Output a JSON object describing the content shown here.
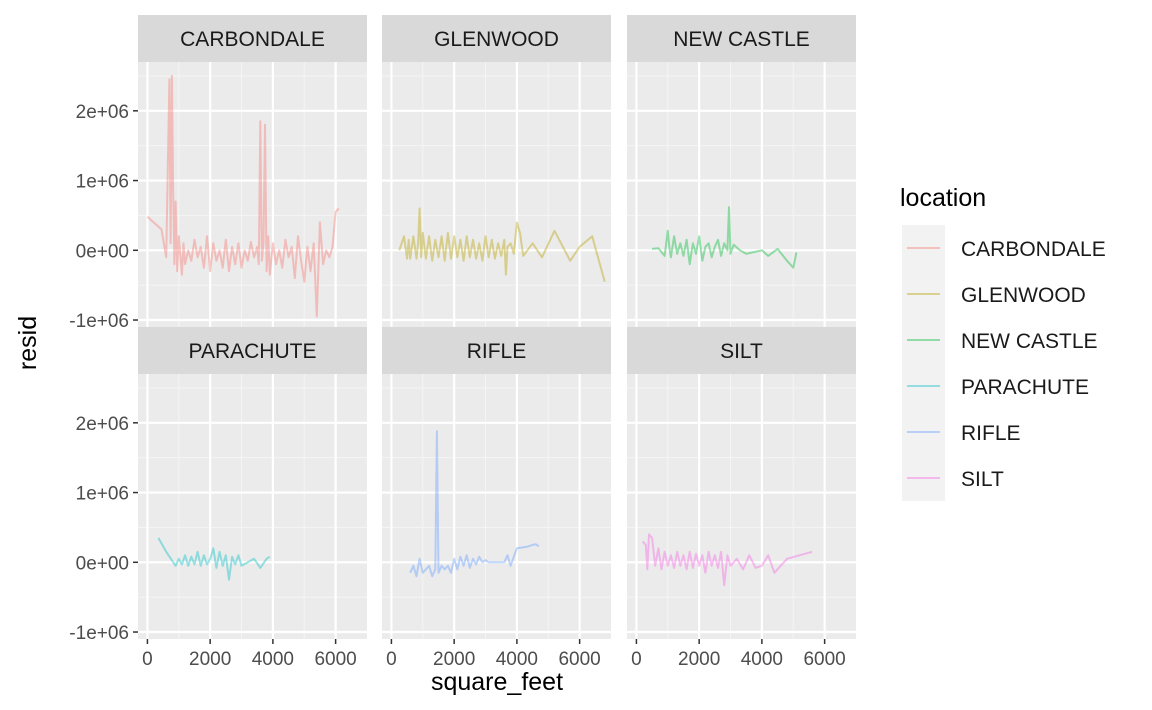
{
  "chart_data": {
    "type": "line",
    "xlabel": "square_feet",
    "ylabel": "resid",
    "xlim": [
      -300,
      7000
    ],
    "ylim": [
      -1100000,
      2700000
    ],
    "x_ticks": [
      0,
      2000,
      4000,
      6000
    ],
    "x_tick_labels": [
      "0",
      "2000",
      "4000",
      "6000"
    ],
    "y_ticks": [
      -1000000,
      0,
      1000000,
      2000000
    ],
    "y_tick_labels": [
      "-1e+06",
      "0e+00",
      "1e+06",
      "2e+06"
    ],
    "grid": true,
    "facet_layout": {
      "rows": 2,
      "cols": 3
    },
    "legend": {
      "title": "location",
      "position": "right",
      "entries": [
        "CARBONDALE",
        "GLENWOOD",
        "NEW CASTLE",
        "PARACHUTE",
        "RIFLE",
        "SILT"
      ]
    },
    "series": [
      {
        "name": "CARBONDALE",
        "color": "#F8766D",
        "x": [
          0,
          450,
          600,
          700,
          740,
          780,
          820,
          860,
          900,
          950,
          1000,
          1100,
          1150,
          1200,
          1300,
          1400,
          1500,
          1600,
          1700,
          1800,
          1900,
          2000,
          2100,
          2200,
          2300,
          2400,
          2500,
          2600,
          2700,
          2800,
          2900,
          3000,
          3100,
          3200,
          3300,
          3400,
          3500,
          3550,
          3600,
          3650,
          3700,
          3750,
          3800,
          3850,
          3900,
          4000,
          4100,
          4200,
          4300,
          4400,
          4500,
          4600,
          4700,
          4800,
          4900,
          5000,
          5100,
          5200,
          5300,
          5400,
          5500,
          5600,
          5700,
          5800,
          5900,
          6000,
          6100
        ],
        "y": [
          480000,
          300000,
          -100000,
          2450000,
          100000,
          2500000,
          900000,
          -200000,
          700000,
          -300000,
          200000,
          -350000,
          100000,
          -200000,
          0,
          -150000,
          150000,
          -100000,
          50000,
          -250000,
          200000,
          -300000,
          100000,
          -150000,
          0,
          -250000,
          150000,
          -300000,
          50000,
          -200000,
          100000,
          -250000,
          0,
          -150000,
          120000,
          -100000,
          50000,
          -200000,
          1850000,
          -150000,
          100000,
          1800000,
          -300000,
          200000,
          -350000,
          100000,
          -200000,
          0,
          -250000,
          150000,
          -100000,
          50000,
          -400000,
          200000,
          -150000,
          -450000,
          50000,
          -300000,
          100000,
          -950000,
          400000,
          -200000,
          0,
          -100000,
          50000,
          550000,
          600000
        ]
      },
      {
        "name": "GLENWOOD",
        "color": "#B79F00",
        "x": [
          250,
          400,
          500,
          550,
          600,
          700,
          800,
          850,
          900,
          950,
          1000,
          1100,
          1200,
          1300,
          1400,
          1500,
          1600,
          1700,
          1800,
          1900,
          2000,
          2100,
          2200,
          2300,
          2400,
          2500,
          2600,
          2700,
          2800,
          2900,
          3000,
          3100,
          3200,
          3300,
          3400,
          3500,
          3600,
          3650,
          3700,
          3800,
          3900,
          4000,
          4100,
          4200,
          4500,
          4800,
          5200,
          5700,
          6000,
          6400,
          6800
        ],
        "y": [
          0,
          200000,
          -120000,
          150000,
          -120000,
          200000,
          -120000,
          100000,
          600000,
          -100000,
          250000,
          -120000,
          200000,
          -150000,
          150000,
          -100000,
          200000,
          -150000,
          250000,
          -120000,
          200000,
          -100000,
          150000,
          -150000,
          200000,
          -100000,
          150000,
          -120000,
          100000,
          -150000,
          200000,
          -100000,
          150000,
          -120000,
          100000,
          -80000,
          150000,
          -350000,
          50000,
          100000,
          -50000,
          400000,
          250000,
          -80000,
          100000,
          -100000,
          280000,
          -150000,
          50000,
          200000,
          -450000
        ]
      },
      {
        "name": "NEW CASTLE",
        "color": "#00BA38",
        "x": [
          500,
          700,
          900,
          1000,
          1050,
          1100,
          1200,
          1300,
          1400,
          1500,
          1600,
          1700,
          1800,
          1900,
          2000,
          2100,
          2200,
          2300,
          2400,
          2500,
          2600,
          2700,
          2800,
          2900,
          2950,
          3000,
          3100,
          3300,
          3500,
          3700,
          4000,
          4200,
          4500,
          4800,
          5000,
          5100
        ],
        "y": [
          20000,
          30000,
          -80000,
          280000,
          50000,
          -100000,
          200000,
          -50000,
          100000,
          -80000,
          150000,
          -200000,
          100000,
          -50000,
          200000,
          -150000,
          50000,
          100000,
          -100000,
          50000,
          150000,
          -80000,
          100000,
          0,
          620000,
          -50000,
          80000,
          0,
          -50000,
          -30000,
          0,
          -80000,
          20000,
          -150000,
          -250000,
          -30000
        ]
      },
      {
        "name": "PARACHUTE",
        "color": "#00BFC4",
        "x": [
          350,
          600,
          900,
          1000,
          1100,
          1200,
          1300,
          1400,
          1500,
          1600,
          1700,
          1800,
          1900,
          2000,
          2100,
          2200,
          2300,
          2400,
          2500,
          2600,
          2700,
          2800,
          2900,
          3000,
          3200,
          3400,
          3600,
          3800,
          3900
        ],
        "y": [
          350000,
          150000,
          -50000,
          50000,
          -30000,
          100000,
          -50000,
          80000,
          -30000,
          150000,
          -50000,
          100000,
          -30000,
          50000,
          200000,
          -80000,
          150000,
          -50000,
          100000,
          -250000,
          80000,
          -30000,
          100000,
          -50000,
          0,
          50000,
          -80000,
          50000,
          80000
        ]
      },
      {
        "name": "RIFLE",
        "color": "#619CFF",
        "x": [
          600,
          700,
          800,
          900,
          1000,
          1100,
          1200,
          1300,
          1400,
          1450,
          1500,
          1600,
          1700,
          1800,
          1900,
          2000,
          2100,
          2200,
          2300,
          2400,
          2500,
          2600,
          2700,
          2800,
          2900,
          3000,
          3100,
          3600,
          3700,
          3800,
          4000,
          4300,
          4500,
          4600,
          4700
        ],
        "y": [
          -150000,
          -50000,
          -200000,
          50000,
          -150000,
          -100000,
          -50000,
          -200000,
          -100000,
          1880000,
          -150000,
          -50000,
          -100000,
          -50000,
          -150000,
          50000,
          -100000,
          80000,
          -50000,
          100000,
          -80000,
          50000,
          -30000,
          80000,
          0,
          30000,
          0,
          0,
          100000,
          -50000,
          200000,
          220000,
          250000,
          260000,
          230000
        ]
      },
      {
        "name": "SILT",
        "color": "#F564E3",
        "x": [
          200,
          300,
          350,
          400,
          500,
          600,
          700,
          800,
          900,
          1000,
          1100,
          1200,
          1300,
          1400,
          1500,
          1600,
          1700,
          1800,
          1900,
          2000,
          2100,
          2200,
          2300,
          2400,
          2500,
          2600,
          2700,
          2800,
          2900,
          3000,
          3200,
          3400,
          3600,
          3800,
          4000,
          4200,
          4400,
          4800,
          5200,
          5600
        ],
        "y": [
          300000,
          250000,
          -100000,
          400000,
          350000,
          -50000,
          200000,
          -100000,
          150000,
          -50000,
          100000,
          -80000,
          150000,
          -50000,
          100000,
          -100000,
          150000,
          -80000,
          120000,
          -50000,
          100000,
          -150000,
          150000,
          -50000,
          100000,
          -80000,
          150000,
          -330000,
          100000,
          -50000,
          50000,
          -100000,
          100000,
          -80000,
          -50000,
          100000,
          -150000,
          50000,
          100000,
          150000
        ]
      }
    ]
  }
}
